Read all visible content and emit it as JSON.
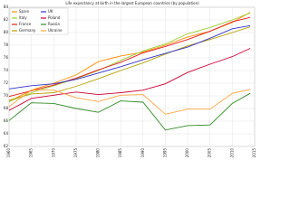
{
  "chart_data": {
    "type": "line",
    "title": "Life expectancy at birth in the largest European countries (by population)",
    "x": [
      1960,
      1965,
      1970,
      1975,
      1980,
      1985,
      1990,
      1995,
      2000,
      2005,
      2010,
      2014
    ],
    "series": [
      {
        "name": "Spain",
        "color": "#ff8c00",
        "values": [
          69.1,
          70.9,
          72.0,
          73.3,
          75.4,
          76.3,
          76.9,
          78.0,
          79.3,
          80.2,
          81.6,
          83.2
        ]
      },
      {
        "name": "Italy",
        "color": "#9acd32",
        "values": [
          69.1,
          70.5,
          71.6,
          72.7,
          74.0,
          75.6,
          77.1,
          78.2,
          79.8,
          80.8,
          82.0,
          83.1
        ]
      },
      {
        "name": "France",
        "color": "#e41a1c",
        "values": [
          69.9,
          70.8,
          71.7,
          72.8,
          74.1,
          75.3,
          76.8,
          77.8,
          78.9,
          80.2,
          81.7,
          82.4
        ]
      },
      {
        "name": "Germany",
        "color": "#b5a000",
        "values": [
          69.3,
          70.3,
          70.5,
          71.5,
          72.7,
          74.0,
          75.2,
          76.6,
          77.9,
          78.9,
          80.0,
          80.9
        ]
      },
      {
        "name": "UK",
        "color": "#3333cc",
        "values": [
          71.1,
          71.6,
          71.9,
          72.6,
          73.6,
          74.6,
          75.7,
          76.7,
          77.7,
          79.1,
          80.6,
          81.1
        ]
      },
      {
        "name": "Poland",
        "color": "#cc0033",
        "values": [
          67.7,
          69.6,
          70.1,
          70.6,
          70.2,
          70.5,
          70.9,
          71.9,
          73.7,
          75.0,
          76.2,
          77.5
        ]
      },
      {
        "name": "Russia",
        "color": "#2e8b22",
        "values": [
          66.1,
          68.9,
          68.8,
          68.0,
          67.4,
          69.2,
          69.0,
          64.6,
          65.3,
          65.4,
          68.8,
          70.4
        ]
      },
      {
        "name": "Ukraine",
        "color": "#ffa640",
        "values": [
          68.3,
          70.9,
          70.9,
          69.7,
          69.1,
          70.1,
          70.2,
          67.1,
          67.9,
          67.9,
          70.4,
          71.0
        ]
      }
    ],
    "xlim": [
      1960,
      2015
    ],
    "xticks": [
      1960,
      1965,
      1970,
      1975,
      1980,
      1985,
      1990,
      1995,
      2000,
      2005,
      2010,
      2015
    ],
    "ylim": [
      62,
      84
    ],
    "yticks": [
      62,
      64,
      66,
      68,
      70,
      72,
      74,
      76,
      78,
      80,
      82,
      84
    ],
    "grid": true
  }
}
